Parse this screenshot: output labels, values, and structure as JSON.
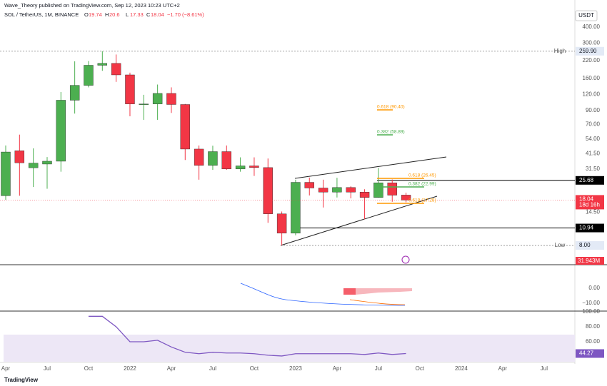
{
  "header": {
    "publisher": "Wave_Theory published on TradingView.com, Sep 12, 2023 10:23 UTC+2",
    "symbol": "SOL / TetherUS, 1M, BINANCE",
    "ohlc_keys": [
      "O",
      "H",
      "L",
      "C"
    ],
    "change": "−1.70 (−8.61%)",
    "currency": "USDT"
  },
  "chart_data": {
    "type": "candlestick",
    "categories": [
      "Apr",
      null,
      null,
      "Jul",
      null,
      null,
      "Oct",
      null,
      null,
      "2022",
      null,
      null,
      "Apr",
      null,
      null,
      "Jul",
      null,
      null,
      "Oct",
      null,
      null,
      "2023",
      null,
      null,
      "Apr",
      null,
      null,
      "Jul",
      null,
      null,
      "Oct",
      null,
      null,
      "2024",
      null,
      null,
      "Apr",
      null,
      null,
      "Jul"
    ],
    "open": [
      19.5,
      43.7,
      32.2,
      34.4,
      36.2,
      108,
      141,
      202,
      209,
      170,
      101,
      101,
      122,
      100,
      45,
      33.6,
      43,
      31.5,
      33.3,
      32.3,
      14.1,
      9.97,
      24.8,
      22.4,
      20.8,
      22.6,
      20.8,
      18.9,
      24.6,
      19.74,
      null,
      null,
      null,
      null,
      null,
      null,
      null,
      null,
      null,
      null
    ],
    "high": [
      48,
      58.3,
      45.6,
      39,
      125,
      217,
      218,
      260,
      245,
      177,
      119,
      143,
      136,
      101,
      48,
      47.8,
      48,
      38.8,
      38.8,
      38,
      14.7,
      26,
      27,
      26,
      26.9,
      23.1,
      21.9,
      32.1,
      26.1,
      20.6,
      null,
      null,
      null,
      null,
      null,
      null,
      null,
      null,
      null,
      null
    ],
    "low": [
      18.1,
      19.5,
      22.8,
      22.1,
      30,
      85,
      136,
      183,
      150,
      81,
      76,
      76,
      86,
      37,
      26,
      31,
      31,
      30,
      27.8,
      12,
      8,
      9.6,
      19.6,
      15.8,
      18.9,
      18.6,
      12.8,
      18.8,
      17.5,
      17.33,
      null,
      null,
      null,
      null,
      null,
      null,
      null,
      null,
      null,
      null
    ],
    "close": [
      42.7,
      35.2,
      35,
      36.2,
      108,
      141,
      202,
      209,
      170,
      101,
      101,
      122,
      100,
      45,
      33.6,
      43,
      31.5,
      33.3,
      32.3,
      14.1,
      9.97,
      24.8,
      22.4,
      20.8,
      22.6,
      20.8,
      18.9,
      24.6,
      19.7,
      18.04,
      null,
      null,
      null,
      null,
      null,
      null,
      null,
      null,
      null,
      null
    ],
    "up_color": "#4caf50",
    "down_color": "#f23645",
    "log_scale": true,
    "ylim": [
      5.74,
      544
    ],
    "yticks": [
      {
        "value": 400,
        "label": "400.00"
      },
      {
        "value": 300,
        "label": "300.00"
      },
      {
        "value": 220,
        "label": "220.00"
      },
      {
        "value": 160,
        "label": "160.00"
      },
      {
        "value": 120,
        "label": "120.00"
      },
      {
        "value": 90,
        "label": "90.00"
      },
      {
        "value": 70,
        "label": "70.00"
      },
      {
        "value": 54,
        "label": "54.00"
      },
      {
        "value": 41.5,
        "label": "41.50"
      },
      {
        "value": 31.5,
        "label": "31.50"
      },
      {
        "value": 14.5,
        "label": "14.50"
      }
    ],
    "levels": [
      {
        "name": "High",
        "value": 259.9,
        "label": "259.90"
      },
      {
        "value": 25.68
      },
      {
        "value": 10.94
      },
      {
        "name": "Low",
        "value": 8,
        "label": "8.00"
      }
    ],
    "countdown": "18d 16h",
    "volume_label": "31.943M",
    "annotations": [
      "0.618 (90.40)",
      "0.382 (58.89)",
      "0.618 (26.45)",
      "0.382 (22.99)",
      "0.618 (17.28)"
    ]
  },
  "macd": {
    "ylim": [
      -14.8,
      14.8
    ],
    "yticks": [
      {
        "value": 0,
        "label": "0.00"
      },
      {
        "value": -10,
        "label": "−10.00"
      }
    ]
  },
  "rsi": {
    "color": "#7e57c2",
    "ylim": [
      33.3,
      100
    ],
    "yticks": [
      {
        "value": 100,
        "label": "100.00"
      },
      {
        "value": 80,
        "label": "80.00"
      },
      {
        "value": 60,
        "label": "60.00"
      }
    ],
    "values": [
      null,
      null,
      null,
      null,
      null,
      null,
      94,
      94,
      80,
      60,
      60,
      62,
      53,
      46,
      44,
      46,
      45,
      45,
      44,
      42,
      41,
      44,
      44,
      44,
      44,
      44,
      43,
      45,
      43,
      44.27,
      null,
      null,
      null,
      null,
      null,
      null,
      null,
      null,
      null,
      null
    ]
  },
  "footer": {
    "logo": "TradingView"
  }
}
